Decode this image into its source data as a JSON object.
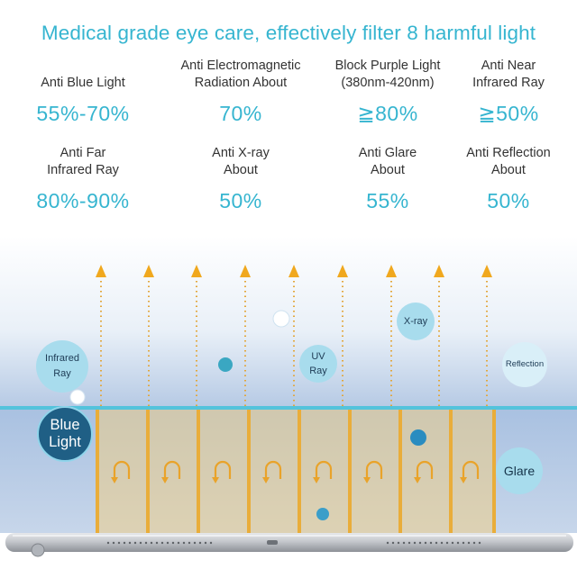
{
  "headline": "Medical grade eye care, effectively filter 8 harmful light",
  "stats": [
    {
      "label_lines": [
        "Anti Blue Light"
      ],
      "value": "55%-70%"
    },
    {
      "label_lines": [
        "Anti Electromagnetic",
        "Radiation About"
      ],
      "value": "70%"
    },
    {
      "label_lines": [
        "Block Purple Light",
        "(380nm-420nm)"
      ],
      "value": "≧80%"
    },
    {
      "label_lines": [
        "Anti Near",
        "Infrared Ray"
      ],
      "value": "≧50%"
    },
    {
      "label_lines": [
        "Anti Far",
        "Infrared Ray"
      ],
      "value": "80%-90%"
    },
    {
      "label_lines": [
        "Anti X-ray",
        "About"
      ],
      "value": "50%"
    },
    {
      "label_lines": [
        "Anti Glare",
        "About"
      ],
      "value": "55%"
    },
    {
      "label_lines": [
        "Anti Reflection",
        "About"
      ],
      "value": "50%"
    }
  ],
  "bubbles": {
    "infrared": [
      "Infrared",
      "Ray"
    ],
    "uv": [
      "UV",
      "Ray"
    ],
    "xray": "X-ray",
    "reflection": "Reflection",
    "blue_light": [
      "Blue",
      "Light"
    ],
    "glare": "Glare"
  },
  "colors": {
    "accent": "#36b5d0",
    "arrow": "#f0a81e",
    "bubble": "#a8dced",
    "dark_bubble": "#1f5f85"
  }
}
